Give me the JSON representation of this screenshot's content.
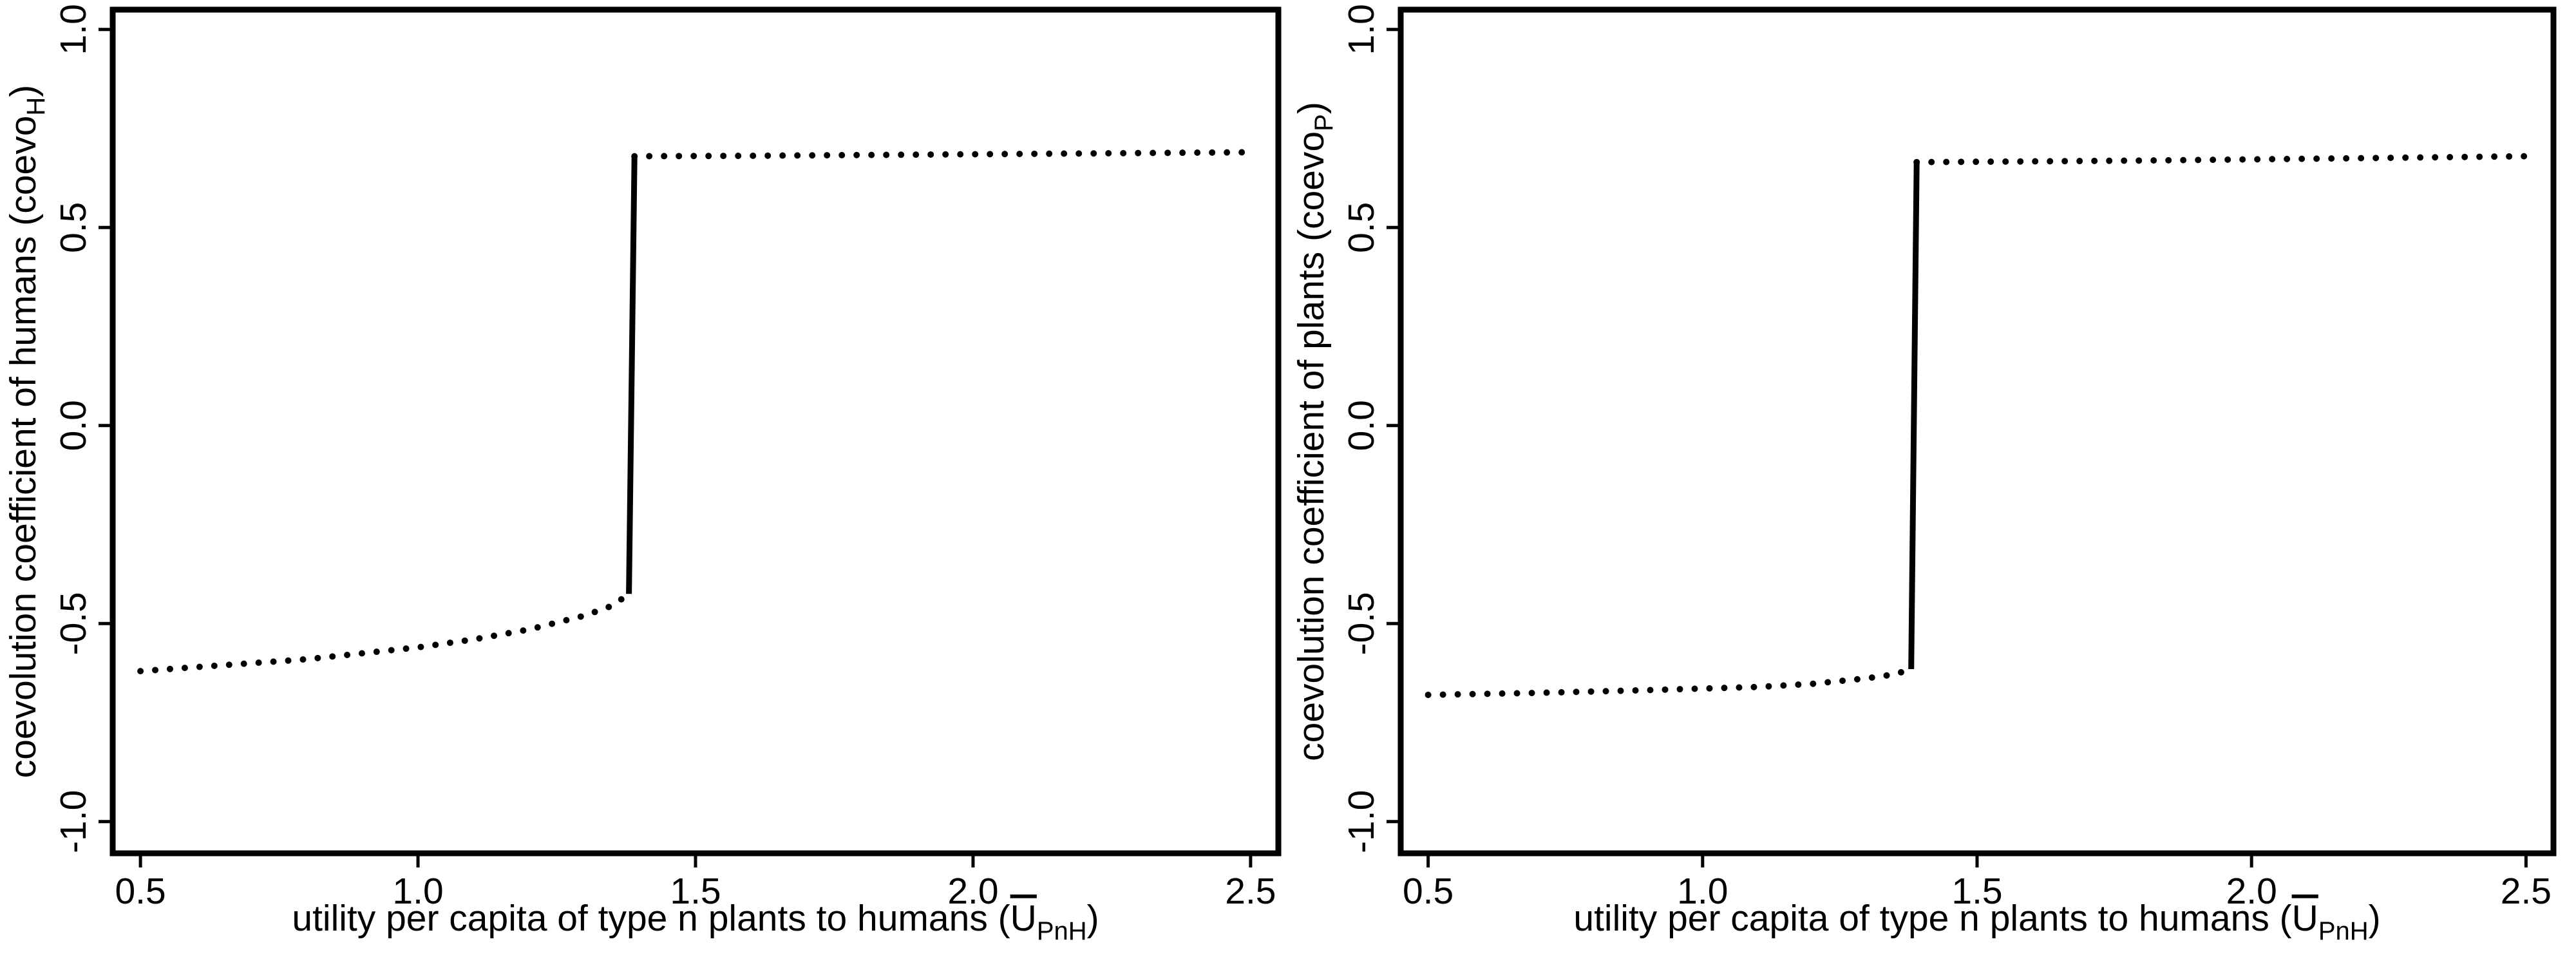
{
  "chart_data": [
    {
      "type": "line",
      "panel": "left",
      "xlabel_main": "utility per capita of type n plants to humans (",
      "xlabel_symbol": "U",
      "xlabel_subscript": "PnH",
      "xlabel_close": ")",
      "ylabel_main": "coevolution coefficient of humans (coevo",
      "ylabel_subscript": "H",
      "ylabel_close": ")",
      "xlim": [
        0.45,
        2.55
      ],
      "ylim": [
        -1.08,
        1.05
      ],
      "xticks": [
        0.5,
        1.0,
        1.5,
        2.0,
        2.5
      ],
      "xtick_labels": [
        "0.5",
        "1.0",
        "1.5",
        "2.0",
        "2.5"
      ],
      "yticks": [
        -1.0,
        -0.5,
        0.0,
        0.5,
        1.0
      ],
      "ytick_labels": [
        "-1.0",
        "-0.5",
        "0.0",
        "0.5",
        "1.0"
      ],
      "series": [
        {
          "style": "dotted",
          "x": [
            0.5,
            0.6,
            0.7,
            0.8,
            0.9,
            1.0,
            1.1,
            1.2,
            1.3,
            1.35,
            1.38
          ],
          "y": [
            -0.62,
            -0.61,
            -0.6,
            -0.59,
            -0.575,
            -0.56,
            -0.54,
            -0.515,
            -0.48,
            -0.455,
            -0.425
          ]
        },
        {
          "style": "solid",
          "x": [
            1.38,
            1.39
          ],
          "y": [
            -0.425,
            0.68
          ]
        },
        {
          "style": "dotted",
          "x": [
            1.39,
            1.6,
            1.8,
            2.0,
            2.2,
            2.5
          ],
          "y": [
            0.68,
            0.681,
            0.683,
            0.685,
            0.687,
            0.69
          ]
        }
      ]
    },
    {
      "type": "line",
      "panel": "right",
      "xlabel_main": "utility per capita of type n plants to humans (",
      "xlabel_symbol": "U",
      "xlabel_subscript": "PnH",
      "xlabel_close": ")",
      "ylabel_main": "coevolution coefficient of plants (coevo",
      "ylabel_subscript": "P",
      "ylabel_close": ")",
      "xlim": [
        0.45,
        2.55
      ],
      "ylim": [
        -1.08,
        1.05
      ],
      "xticks": [
        0.5,
        1.0,
        1.5,
        2.0,
        2.5
      ],
      "xtick_labels": [
        "0.5",
        "1.0",
        "1.5",
        "2.0",
        "2.5"
      ],
      "yticks": [
        -1.0,
        -0.5,
        0.0,
        0.5,
        1.0
      ],
      "ytick_labels": [
        "-1.0",
        "-0.5",
        "0.0",
        "0.5",
        "1.0"
      ],
      "series": [
        {
          "style": "dotted",
          "x": [
            0.5,
            0.7,
            0.9,
            1.1,
            1.2,
            1.3,
            1.35,
            1.38
          ],
          "y": [
            -0.68,
            -0.675,
            -0.668,
            -0.66,
            -0.652,
            -0.638,
            -0.628,
            -0.615
          ]
        },
        {
          "style": "solid",
          "x": [
            1.38,
            1.39
          ],
          "y": [
            -0.615,
            0.665
          ]
        },
        {
          "style": "dotted",
          "x": [
            1.39,
            1.6,
            1.8,
            2.0,
            2.2,
            2.5
          ],
          "y": [
            0.665,
            0.667,
            0.669,
            0.672,
            0.675,
            0.68
          ]
        }
      ]
    }
  ]
}
